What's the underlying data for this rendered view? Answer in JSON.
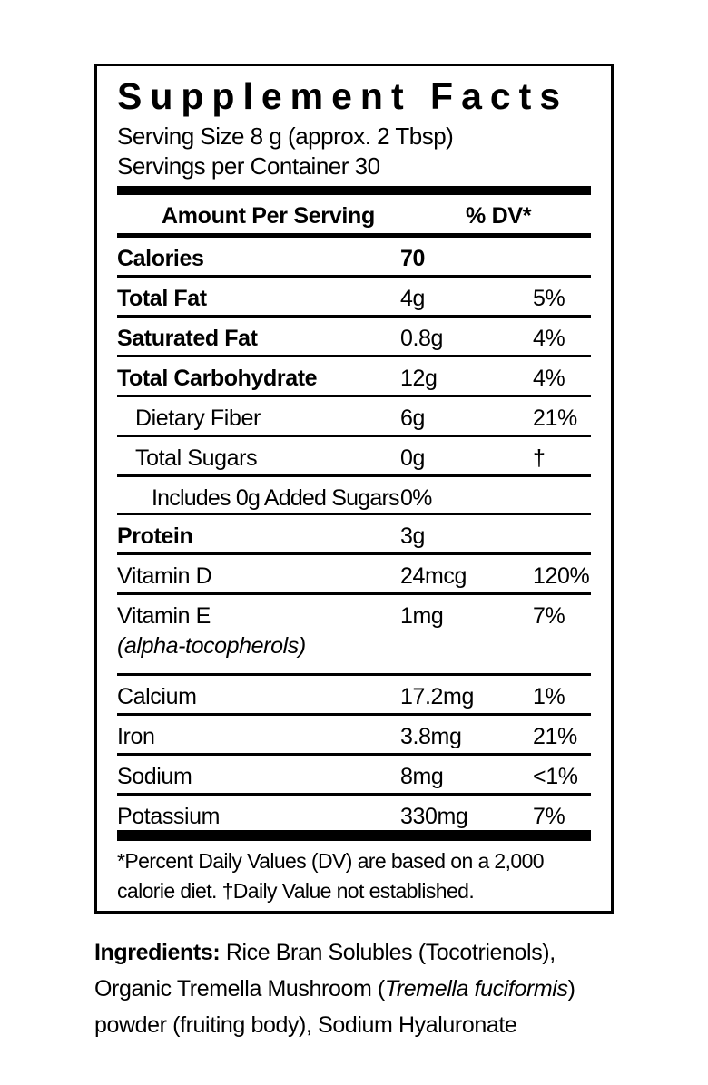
{
  "colors": {
    "text": "#000000",
    "background": "#ffffff",
    "rule": "#000000"
  },
  "label": {
    "title": "Supplement Facts",
    "serving_size": "Serving Size 8 g (approx. 2 Tbsp)",
    "servings_per_container": "Servings per Container 30",
    "header": {
      "amount_col": "Amount Per Serving",
      "dv_col": "% DV*"
    },
    "rows": [
      {
        "name": "Calories",
        "amount": "70",
        "dv": "",
        "bold": true,
        "bold_amount": true,
        "indent": 0
      },
      {
        "name": "Total Fat",
        "amount": "4g",
        "dv": "5%",
        "bold": true,
        "indent": 0
      },
      {
        "name": "Saturated Fat",
        "amount": "0.8g",
        "dv": "4%",
        "bold": true,
        "indent": 0
      },
      {
        "name": "Total Carbohydrate",
        "amount": "12g",
        "dv": "4%",
        "bold": true,
        "indent": 0
      },
      {
        "name": "Dietary Fiber",
        "amount": "6g",
        "dv": "21%",
        "bold": false,
        "indent": 1
      },
      {
        "name": "Total Sugars",
        "amount": "0g",
        "dv": "†",
        "bold": false,
        "indent": 1
      },
      {
        "name": "Includes 0g Added Sugars",
        "amount": "0%",
        "dv": "",
        "bold": false,
        "indent": 2,
        "compact": true
      },
      {
        "name": "Protein",
        "amount": "3g",
        "dv": "",
        "bold": true,
        "indent": 0
      },
      {
        "name": "Vitamin D",
        "amount": "24mcg",
        "dv": "120%",
        "bold": false,
        "indent": 0
      },
      {
        "name": "Vitamin E",
        "sublabel": "(alpha-tocopherols)",
        "amount": "1mg",
        "dv": "7%",
        "bold": false,
        "indent": 0
      },
      {
        "name": "Calcium",
        "amount": "17.2mg",
        "dv": "1%",
        "bold": false,
        "indent": 0
      },
      {
        "name": "Iron",
        "amount": "3.8mg",
        "dv": "21%",
        "bold": false,
        "indent": 0
      },
      {
        "name": "Sodium",
        "amount": "8mg",
        "dv": "<1%",
        "bold": false,
        "indent": 0
      },
      {
        "name": "Potassium",
        "amount": "330mg",
        "dv": "7%",
        "bold": false,
        "indent": 0,
        "last": true
      }
    ],
    "footnote_lines": [
      "*Percent Daily Values (DV) are based on a 2,000",
      "calorie diet. †Daily Value not established."
    ]
  },
  "ingredients": {
    "lines": [
      [
        {
          "text": "Ingredients: ",
          "style": "bold"
        },
        {
          "text": "Rice Bran Solubles (Tocotrienols),",
          "style": "regular"
        }
      ],
      [
        {
          "text": "Organic Tremella Mushroom (",
          "style": "regular"
        },
        {
          "text": "Tremella fuciformis",
          "style": "italic"
        },
        {
          "text": ")",
          "style": "regular"
        }
      ],
      [
        {
          "text": "powder (fruiting body), Sodium Hyaluronate",
          "style": "regular"
        }
      ]
    ]
  }
}
